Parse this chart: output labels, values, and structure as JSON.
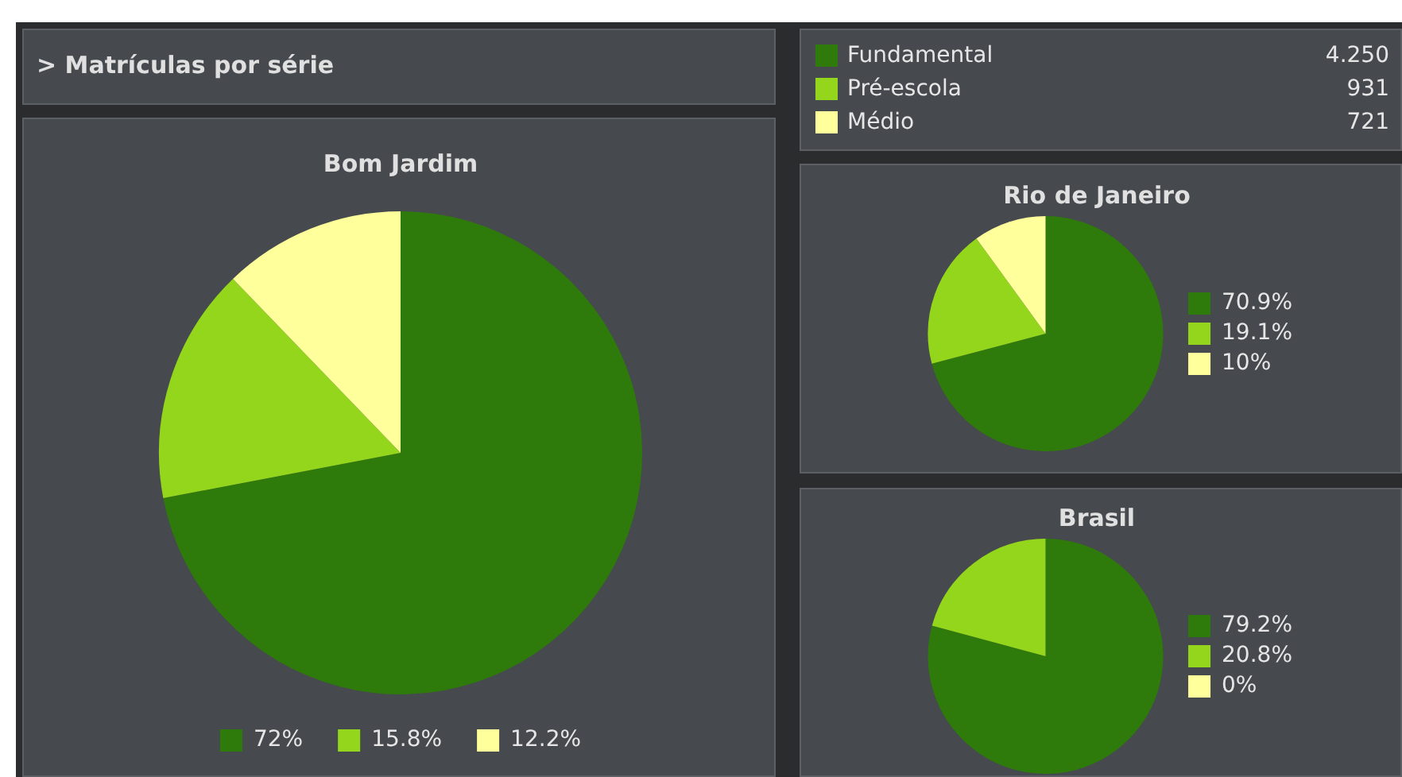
{
  "chart_data": [
    {
      "type": "other",
      "title": "> Matrículas por série",
      "categories": [
        "Fundamental",
        "Pré-escola",
        "Médio"
      ],
      "value_labels": [
        "4.250",
        "931",
        "721"
      ],
      "colors": [
        "#2e7b0b",
        "#94d61c",
        "#ffff9c"
      ]
    },
    {
      "type": "pie",
      "title": "Bom Jardim",
      "categories": [
        "72%",
        "15.8%",
        "12.2%"
      ],
      "values": [
        72,
        15.8,
        12.2
      ],
      "colors": [
        "#2e7b0b",
        "#94d61c",
        "#ffff9c"
      ],
      "legend": "bottom"
    },
    {
      "type": "pie",
      "title": "Rio de Janeiro",
      "categories": [
        "70.9%",
        "19.1%",
        "10%"
      ],
      "values": [
        70.9,
        19.1,
        10
      ],
      "colors": [
        "#2e7b0b",
        "#94d61c",
        "#ffff9c"
      ],
      "legend": "right"
    },
    {
      "type": "pie",
      "title": "Brasil",
      "categories": [
        "79.2%",
        "20.8%",
        "0%"
      ],
      "values": [
        79.2,
        20.8,
        0
      ],
      "colors": [
        "#2e7b0b",
        "#94d61c",
        "#ffff9c"
      ],
      "legend": "right"
    }
  ]
}
